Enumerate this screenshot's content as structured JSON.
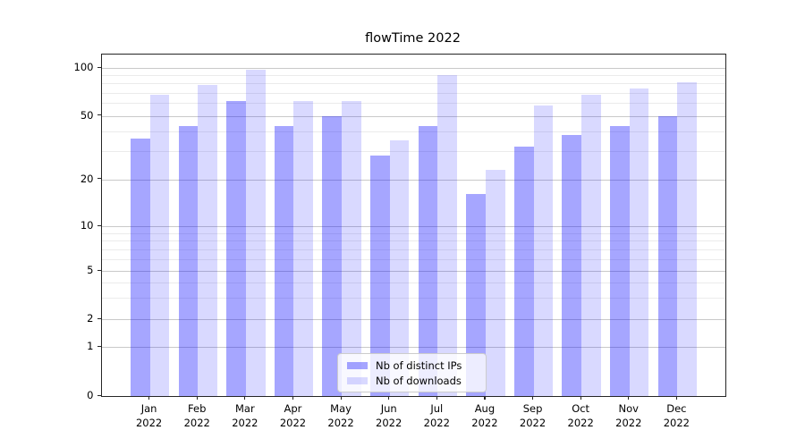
{
  "title": "flowTime 2022",
  "chart_data": {
    "type": "bar",
    "title": "flowTime 2022",
    "categories": [
      "Jan",
      "Feb",
      "Mar",
      "Apr",
      "May",
      "Jun",
      "Jul",
      "Aug",
      "Sep",
      "Oct",
      "Nov",
      "Dec"
    ],
    "category_year": "2022",
    "series": [
      {
        "name": "Nb of distinct IPs",
        "color": "rgba(0,0,255,0.35)",
        "values": [
          36,
          43,
          62,
          43,
          50,
          28,
          43,
          16,
          32,
          38,
          43,
          50
        ]
      },
      {
        "name": "Nb of downloads",
        "color": "rgba(0,0,255,0.15)",
        "values": [
          68,
          78,
          97,
          62,
          62,
          35,
          90,
          23,
          58,
          68,
          74,
          81
        ]
      }
    ],
    "yscale": "symlog",
    "y_ticks": [
      0,
      1,
      2,
      5,
      10,
      20,
      50,
      100
    ],
    "y_minor_gridlines": [
      3,
      4,
      6,
      7,
      8,
      9,
      30,
      40,
      60,
      70,
      80,
      90
    ],
    "ylim": [
      0,
      121
    ],
    "xlabel": "",
    "ylabel": "",
    "grid": true,
    "legend_position": "lower center",
    "colors": {
      "grid_major": "#c9c9c9",
      "grid_minor": "#ebebeb",
      "axis": "#262626",
      "text": "#000000"
    }
  }
}
